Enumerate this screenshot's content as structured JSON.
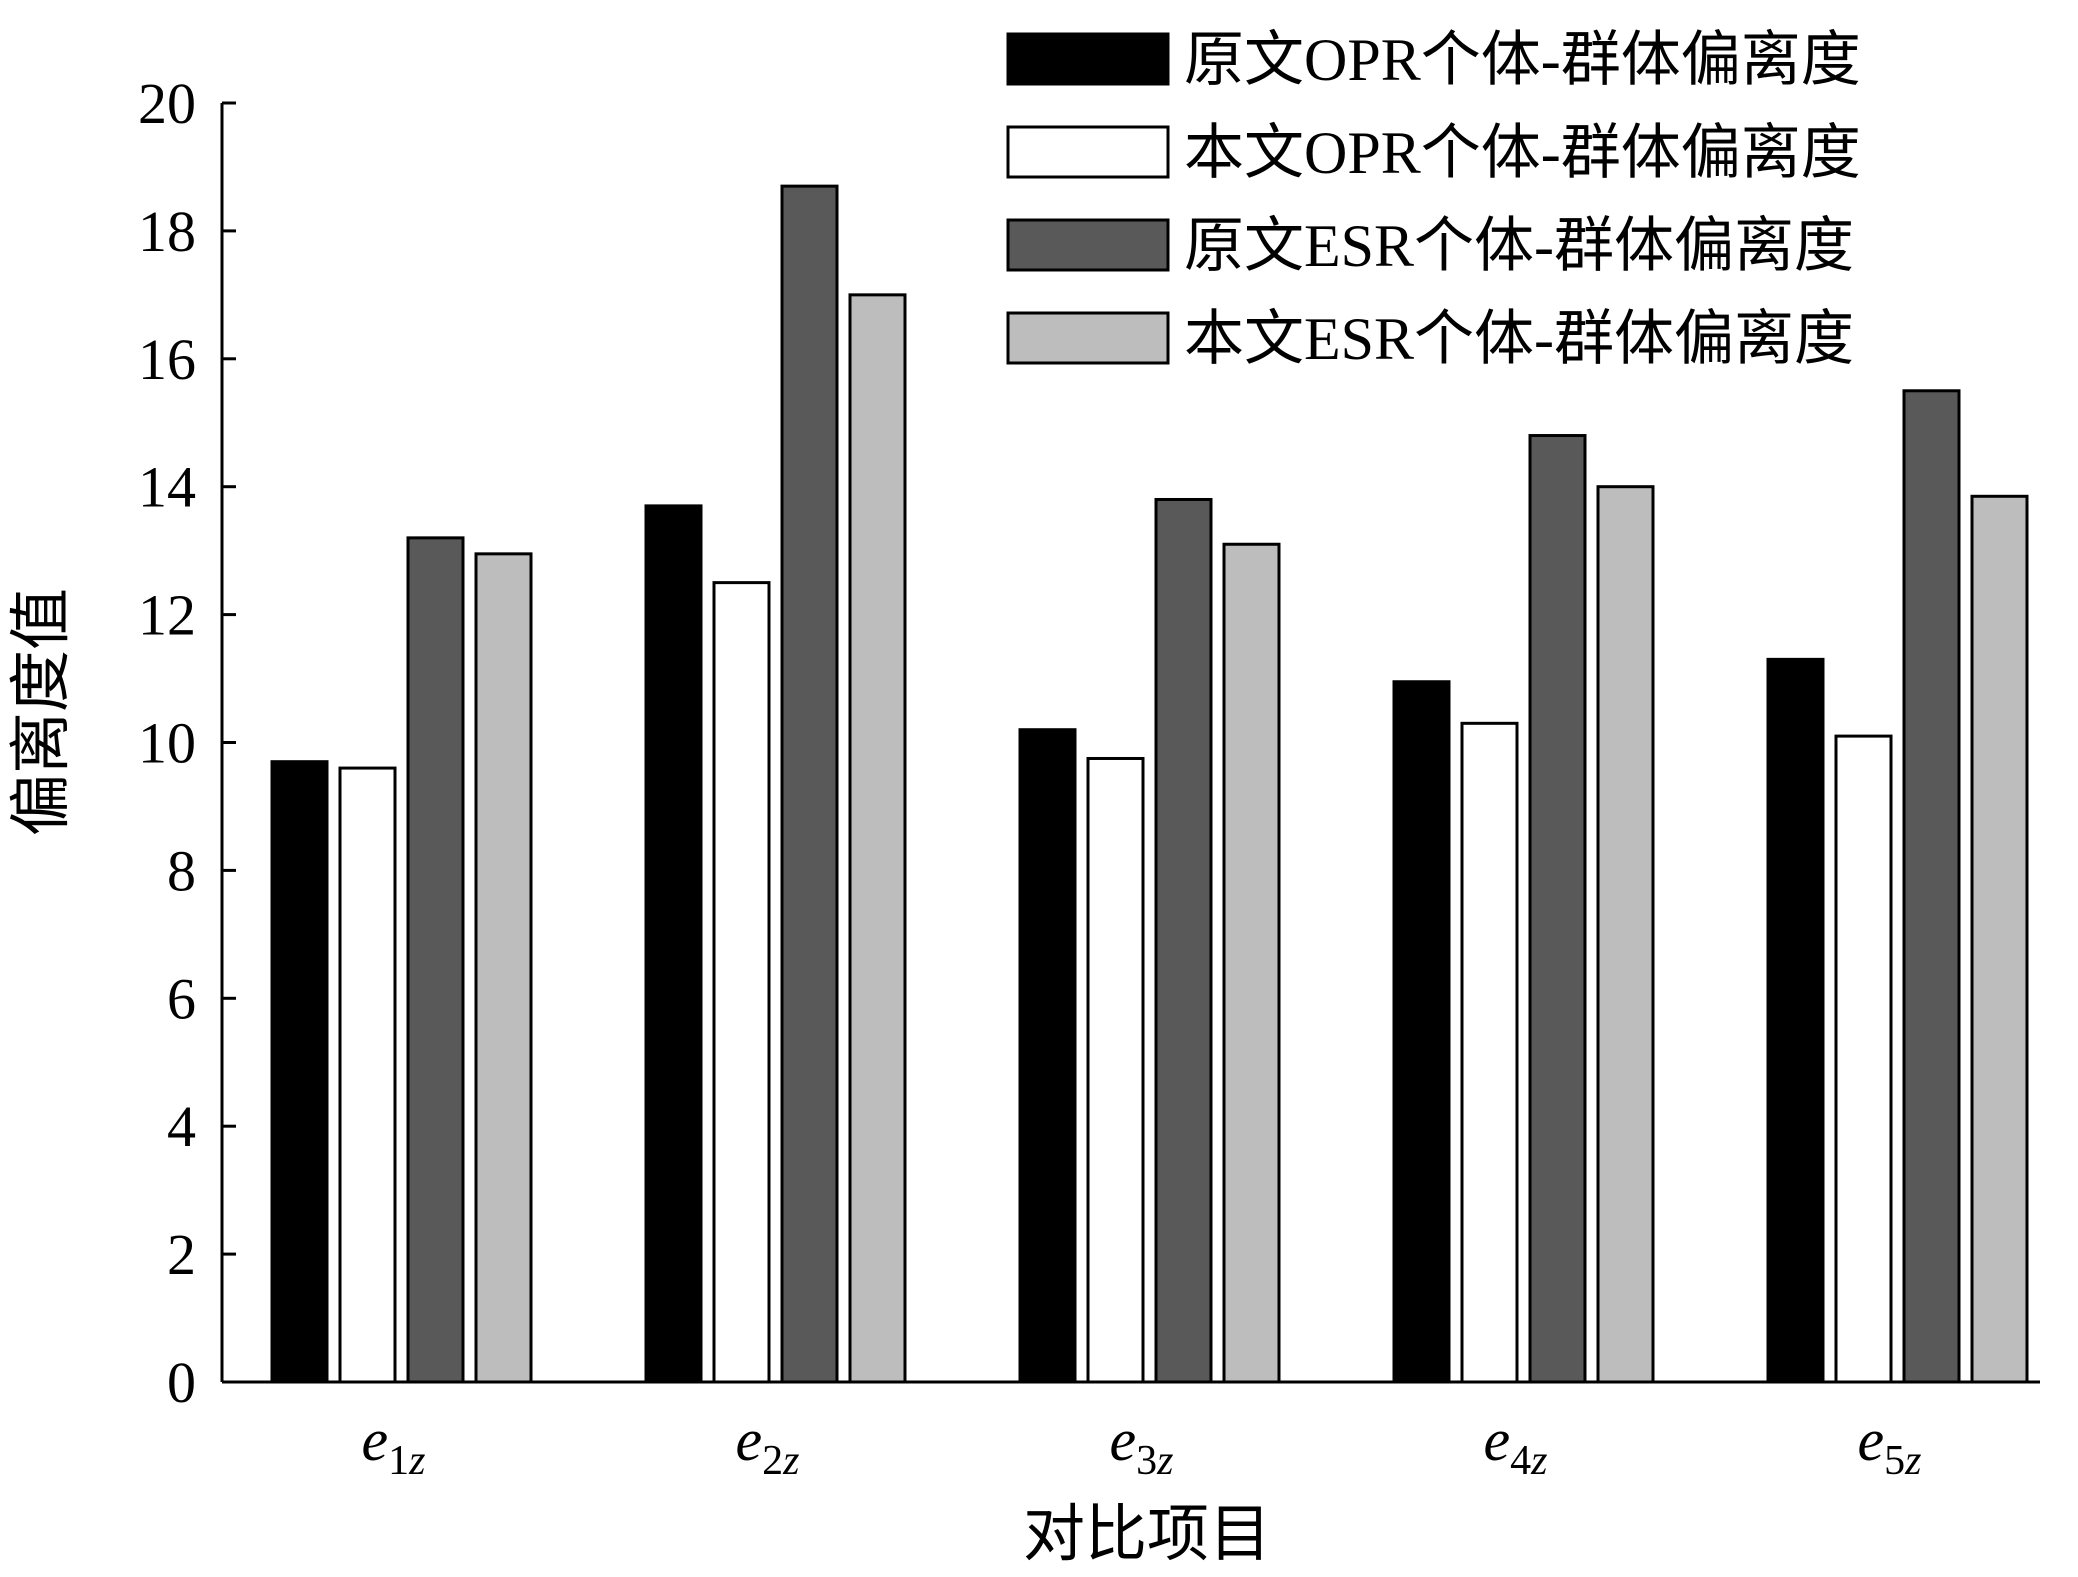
{
  "chart_data": {
    "type": "bar",
    "categories": [
      {
        "base": "e",
        "sub": "1z"
      },
      {
        "base": "e",
        "sub": "2z"
      },
      {
        "base": "e",
        "sub": "3z"
      },
      {
        "base": "e",
        "sub": "4z"
      },
      {
        "base": "e",
        "sub": "5z"
      }
    ],
    "series": [
      {
        "name": "原文OPR个体-群体偏离度",
        "values": [
          9.7,
          13.7,
          10.2,
          10.95,
          11.3
        ],
        "color": "#000000"
      },
      {
        "name": "本文OPR个体-群体偏离度",
        "values": [
          9.6,
          12.5,
          9.75,
          10.3,
          10.1
        ],
        "color": "#ffffff"
      },
      {
        "name": "原文ESR个体-群体偏离度",
        "values": [
          13.2,
          18.7,
          13.8,
          14.8,
          15.5
        ],
        "color": "#595959"
      },
      {
        "name": "本文ESR个体-群体偏离度",
        "values": [
          12.95,
          17.0,
          13.1,
          14.0,
          13.85
        ],
        "color": "#bdbdbd"
      }
    ],
    "ylim": [
      0,
      20
    ],
    "yticks": [
      0,
      2,
      4,
      6,
      8,
      10,
      12,
      14,
      16,
      18,
      20
    ],
    "ylabel": "偏离度值",
    "xlabel": "对比项目",
    "grid": false,
    "legend_position": "top-right"
  }
}
